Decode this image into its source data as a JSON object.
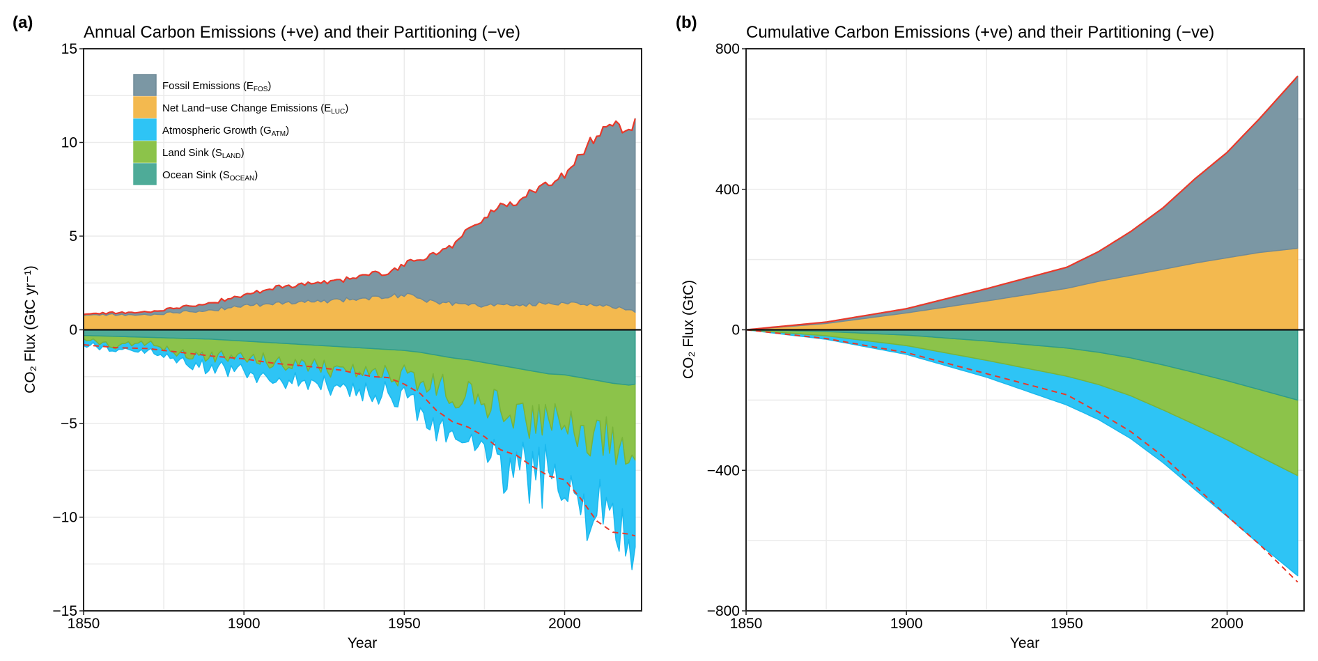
{
  "chart_data": [
    {
      "panel_label": "(a)",
      "type": "area",
      "title": "Annual Carbon Emissions (+ve) and their Partitioning (−ve)",
      "xlabel": "Year",
      "ylabel": "CO₂ Flux (GtC yr⁻¹)",
      "xlim": [
        1850,
        2024
      ],
      "ylim": [
        -15,
        15
      ],
      "xticks": [
        1850,
        1900,
        1950,
        2000
      ],
      "xtick_labels": [
        "1850",
        "1900",
        "1950",
        "2000"
      ],
      "yticks": [
        15,
        10,
        5,
        0,
        -5,
        -10,
        -15
      ],
      "ytick_labels": [
        "15",
        "10",
        "5",
        "0",
        "−5",
        "−10",
        "−15"
      ],
      "grid": true,
      "legend_position": "top-left",
      "legend": [
        {
          "label": "Fossil Emissions (E",
          "sub": "FOS",
          "color": "#7b97a4"
        },
        {
          "label": "Net Land−use Change Emissions (E",
          "sub": "LUC",
          "color": "#f3b94f"
        },
        {
          "label": "Atmospheric Growth (G",
          "sub": "ATM",
          "color": "#2ec4f5"
        },
        {
          "label": "Land Sink (S",
          "sub": "LAND",
          "color": "#8cc34a"
        },
        {
          "label": "Ocean Sink (S",
          "sub": "OCEAN",
          "color": "#4eab98"
        }
      ],
      "x": [
        1850,
        1860,
        1870,
        1880,
        1890,
        1900,
        1910,
        1920,
        1930,
        1940,
        1945,
        1950,
        1955,
        1960,
        1965,
        1970,
        1975,
        1980,
        1985,
        1990,
        1995,
        2000,
        2005,
        2010,
        2015,
        2020,
        2022
      ],
      "series": [
        {
          "name": "Fossil Emissions",
          "values": [
            0.05,
            0.1,
            0.15,
            0.25,
            0.4,
            0.55,
            0.85,
            0.95,
            1.05,
            1.3,
            1.25,
            1.65,
            2.05,
            2.6,
            3.15,
            4.05,
            4.6,
            5.3,
            5.4,
            6.15,
            6.4,
            6.85,
            7.9,
            9.1,
            9.85,
            9.5,
            10.1
          ]
        },
        {
          "name": "Net Land-use Change Emissions",
          "values": [
            0.8,
            0.8,
            0.8,
            0.95,
            1.05,
            1.3,
            1.4,
            1.5,
            1.6,
            1.7,
            1.8,
            1.85,
            1.65,
            1.5,
            1.4,
            1.35,
            1.3,
            1.35,
            1.3,
            1.35,
            1.45,
            1.4,
            1.45,
            1.3,
            1.25,
            1.0,
            1.0
          ]
        },
        {
          "name": "Ocean Sink",
          "values": [
            -0.3,
            -0.35,
            -0.4,
            -0.45,
            -0.5,
            -0.6,
            -0.7,
            -0.8,
            -0.9,
            -1.0,
            -1.05,
            -1.1,
            -1.2,
            -1.35,
            -1.5,
            -1.6,
            -1.75,
            -1.9,
            -2.05,
            -2.2,
            -2.35,
            -2.4,
            -2.55,
            -2.7,
            -2.85,
            -2.95,
            -2.9
          ]
        },
        {
          "name": "Land Sink",
          "values": [
            -0.2,
            -0.5,
            -0.3,
            -0.7,
            -0.9,
            -0.8,
            -1.0,
            -1.1,
            -1.2,
            -1.0,
            -1.4,
            -1.3,
            -1.5,
            -1.6,
            -1.9,
            -1.7,
            -2.2,
            -2.1,
            -2.4,
            -2.6,
            -2.9,
            -2.5,
            -3.1,
            -3.0,
            -3.2,
            -3.3,
            -3.4
          ]
        },
        {
          "name": "Atmospheric Growth",
          "values": [
            -0.3,
            -0.2,
            -0.5,
            -0.4,
            -0.6,
            -0.8,
            -0.9,
            -0.9,
            -1.0,
            -1.3,
            -1.0,
            -1.6,
            -1.7,
            -2.0,
            -1.9,
            -2.6,
            -2.4,
            -3.1,
            -2.8,
            -3.2,
            -3.0,
            -3.4,
            -3.8,
            -4.4,
            -4.3,
            -4.9,
            -4.8
          ]
        }
      ],
      "budget_imbalance_line": {
        "style": "dashed",
        "color": "#e8392a",
        "values": [
          -0.8,
          -0.95,
          -1.0,
          -1.2,
          -1.4,
          -1.55,
          -1.8,
          -1.95,
          -2.15,
          -2.5,
          -2.55,
          -2.9,
          -3.4,
          -4.3,
          -4.9,
          -5.2,
          -5.7,
          -6.4,
          -6.7,
          -7.3,
          -7.8,
          -8.0,
          -9.0,
          -10.2,
          -10.8,
          -10.9,
          -11.0
        ]
      },
      "total_emissions_line": {
        "style": "solid",
        "color": "#e8392a"
      }
    },
    {
      "panel_label": "(b)",
      "type": "area",
      "title": "Cumulative Carbon Emissions (+ve) and their Partitioning (−ve)",
      "xlabel": "Year",
      "ylabel": "CO₂ Flux (GtC)",
      "xlim": [
        1850,
        2024
      ],
      "ylim": [
        -800,
        800
      ],
      "xticks": [
        1850,
        1900,
        1950,
        2000
      ],
      "xtick_labels": [
        "1850",
        "1900",
        "1950",
        "2000"
      ],
      "yticks": [
        800,
        400,
        0,
        -400,
        -800
      ],
      "ytick_labels": [
        "800",
        "400",
        "0",
        "−400",
        "−800"
      ],
      "grid": true,
      "x": [
        1850,
        1875,
        1900,
        1925,
        1950,
        1960,
        1970,
        1980,
        1990,
        2000,
        2010,
        2022
      ],
      "series": [
        {
          "name": "Fossil Emissions",
          "values": [
            0,
            4,
            12,
            35,
            60,
            85,
            125,
            175,
            240,
            300,
            380,
            490
          ]
        },
        {
          "name": "Net Land-use Change Emissions",
          "values": [
            0,
            18,
            48,
            82,
            118,
            138,
            155,
            172,
            190,
            205,
            220,
            232
          ]
        },
        {
          "name": "Ocean Sink",
          "values": [
            0,
            -5,
            -15,
            -32,
            -52,
            -64,
            -80,
            -100,
            -122,
            -145,
            -170,
            -200
          ]
        },
        {
          "name": "Land Sink",
          "values": [
            0,
            -12,
            -30,
            -55,
            -80,
            -92,
            -108,
            -128,
            -148,
            -168,
            -190,
            -215
          ]
        },
        {
          "name": "Atmospheric Growth",
          "values": [
            0,
            -10,
            -25,
            -48,
            -82,
            -100,
            -122,
            -150,
            -185,
            -218,
            -250,
            -285
          ]
        }
      ],
      "budget_imbalance_line": {
        "style": "dashed",
        "color": "#e8392a",
        "values": [
          0,
          -25,
          -65,
          -125,
          -185,
          -235,
          -290,
          -360,
          -445,
          -530,
          -610,
          -718
        ]
      },
      "total_emissions_line": {
        "style": "solid",
        "color": "#e8392a"
      }
    }
  ]
}
